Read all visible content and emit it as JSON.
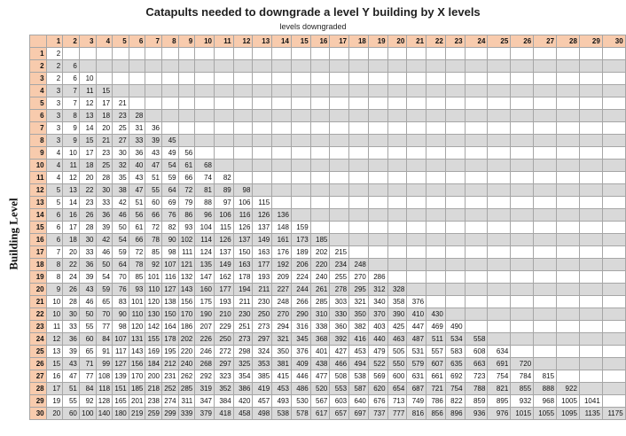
{
  "title": "Catapults needed to downgrade a level Y building by X levels",
  "subtitle": "levels downgraded",
  "y_axis_label": "Building Level",
  "colors": {
    "header": "#f8cbad",
    "shaded_row": "#d9d9d9",
    "grid": "#a6a6a6"
  },
  "columns": [
    1,
    2,
    3,
    4,
    5,
    6,
    7,
    8,
    9,
    10,
    11,
    12,
    13,
    14,
    15,
    16,
    17,
    18,
    19,
    20,
    21,
    22,
    23,
    24,
    25,
    26,
    27,
    28,
    29,
    30
  ],
  "rows": [
    {
      "level": 1,
      "values": [
        2
      ]
    },
    {
      "level": 2,
      "values": [
        2,
        6
      ]
    },
    {
      "level": 3,
      "values": [
        2,
        6,
        10
      ]
    },
    {
      "level": 4,
      "values": [
        3,
        7,
        11,
        15
      ]
    },
    {
      "level": 5,
      "values": [
        3,
        7,
        12,
        17,
        21
      ]
    },
    {
      "level": 6,
      "values": [
        3,
        8,
        13,
        18,
        23,
        28
      ]
    },
    {
      "level": 7,
      "values": [
        3,
        9,
        14,
        20,
        25,
        31,
        36
      ]
    },
    {
      "level": 8,
      "values": [
        3,
        9,
        15,
        21,
        27,
        33,
        39,
        45
      ]
    },
    {
      "level": 9,
      "values": [
        4,
        10,
        17,
        23,
        30,
        36,
        43,
        49,
        56
      ]
    },
    {
      "level": 10,
      "values": [
        4,
        11,
        18,
        25,
        32,
        40,
        47,
        54,
        61,
        68
      ]
    },
    {
      "level": 11,
      "values": [
        4,
        12,
        20,
        28,
        35,
        43,
        51,
        59,
        66,
        74,
        82
      ]
    },
    {
      "level": 12,
      "values": [
        5,
        13,
        22,
        30,
        38,
        47,
        55,
        64,
        72,
        81,
        89,
        98
      ]
    },
    {
      "level": 13,
      "values": [
        5,
        14,
        23,
        33,
        42,
        51,
        60,
        69,
        79,
        88,
        97,
        106,
        115
      ]
    },
    {
      "level": 14,
      "values": [
        6,
        16,
        26,
        36,
        46,
        56,
        66,
        76,
        86,
        96,
        106,
        116,
        126,
        136
      ]
    },
    {
      "level": 15,
      "values": [
        6,
        17,
        28,
        39,
        50,
        61,
        72,
        82,
        93,
        104,
        115,
        126,
        137,
        148,
        159
      ]
    },
    {
      "level": 16,
      "values": [
        6,
        18,
        30,
        42,
        54,
        66,
        78,
        90,
        102,
        114,
        126,
        137,
        149,
        161,
        173,
        185
      ]
    },
    {
      "level": 17,
      "values": [
        7,
        20,
        33,
        46,
        59,
        72,
        85,
        98,
        111,
        124,
        137,
        150,
        163,
        176,
        189,
        202,
        215
      ]
    },
    {
      "level": 18,
      "values": [
        8,
        22,
        36,
        50,
        64,
        78,
        92,
        107,
        121,
        135,
        149,
        163,
        177,
        192,
        206,
        220,
        234,
        248
      ]
    },
    {
      "level": 19,
      "values": [
        8,
        24,
        39,
        54,
        70,
        85,
        101,
        116,
        132,
        147,
        162,
        178,
        193,
        209,
        224,
        240,
        255,
        270,
        286
      ]
    },
    {
      "level": 20,
      "values": [
        9,
        26,
        43,
        59,
        76,
        93,
        110,
        127,
        143,
        160,
        177,
        194,
        211,
        227,
        244,
        261,
        278,
        295,
        312,
        328
      ]
    },
    {
      "level": 21,
      "values": [
        10,
        28,
        46,
        65,
        83,
        101,
        120,
        138,
        156,
        175,
        193,
        211,
        230,
        248,
        266,
        285,
        303,
        321,
        340,
        358,
        376
      ]
    },
    {
      "level": 22,
      "values": [
        10,
        30,
        50,
        70,
        90,
        110,
        130,
        150,
        170,
        190,
        210,
        230,
        250,
        270,
        290,
        310,
        330,
        350,
        370,
        390,
        410,
        430
      ]
    },
    {
      "level": 23,
      "values": [
        11,
        33,
        55,
        77,
        98,
        120,
        142,
        164,
        186,
        207,
        229,
        251,
        273,
        294,
        316,
        338,
        360,
        382,
        403,
        425,
        447,
        469,
        490
      ]
    },
    {
      "level": 24,
      "values": [
        12,
        36,
        60,
        84,
        107,
        131,
        155,
        178,
        202,
        226,
        250,
        273,
        297,
        321,
        345,
        368,
        392,
        416,
        440,
        463,
        487,
        511,
        534,
        558
      ]
    },
    {
      "level": 25,
      "values": [
        13,
        39,
        65,
        91,
        117,
        143,
        169,
        195,
        220,
        246,
        272,
        298,
        324,
        350,
        376,
        401,
        427,
        453,
        479,
        505,
        531,
        557,
        583,
        608,
        634
      ]
    },
    {
      "level": 26,
      "values": [
        15,
        43,
        71,
        99,
        127,
        156,
        184,
        212,
        240,
        268,
        297,
        325,
        353,
        381,
        409,
        438,
        466,
        494,
        522,
        550,
        579,
        607,
        635,
        663,
        691,
        720
      ]
    },
    {
      "level": 27,
      "values": [
        16,
        47,
        77,
        108,
        139,
        170,
        200,
        231,
        262,
        292,
        323,
        354,
        385,
        415,
        446,
        477,
        508,
        538,
        569,
        600,
        631,
        661,
        692,
        723,
        754,
        784,
        815
      ]
    },
    {
      "level": 28,
      "values": [
        17,
        51,
        84,
        118,
        151,
        185,
        218,
        252,
        285,
        319,
        352,
        386,
        419,
        453,
        486,
        520,
        553,
        587,
        620,
        654,
        687,
        721,
        754,
        788,
        821,
        855,
        888,
        922
      ]
    },
    {
      "level": 29,
      "values": [
        19,
        55,
        92,
        128,
        165,
        201,
        238,
        274,
        311,
        347,
        384,
        420,
        457,
        493,
        530,
        567,
        603,
        640,
        676,
        713,
        749,
        786,
        822,
        859,
        895,
        932,
        968,
        1005,
        1041
      ]
    },
    {
      "level": 30,
      "values": [
        20,
        60,
        100,
        140,
        180,
        219,
        259,
        299,
        339,
        379,
        418,
        458,
        498,
        538,
        578,
        617,
        657,
        697,
        737,
        777,
        816,
        856,
        896,
        936,
        976,
        1015,
        1055,
        1095,
        1135,
        1175
      ]
    }
  ]
}
